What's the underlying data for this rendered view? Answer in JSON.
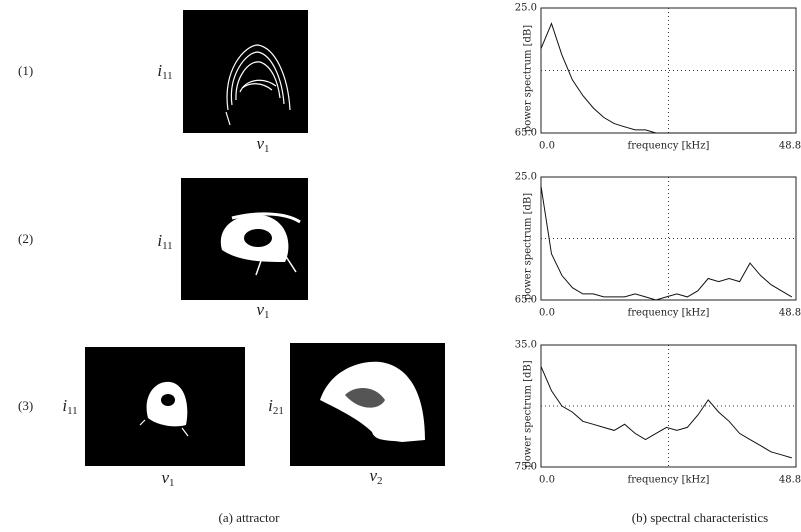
{
  "figure": {
    "rows": [
      {
        "label": "(1)",
        "plots": [
          {
            "y": {
              "symbol": "i",
              "subscript": "11"
            },
            "x": {
              "symbol": "v",
              "subscript": "1"
            }
          }
        ]
      },
      {
        "label": "(2)",
        "plots": [
          {
            "y": {
              "symbol": "i",
              "subscript": "11"
            },
            "x": {
              "symbol": "v",
              "subscript": "1"
            }
          }
        ]
      },
      {
        "label": "(3)",
        "plots": [
          {
            "y": {
              "symbol": "i",
              "subscript": "11"
            },
            "x": {
              "symbol": "v",
              "subscript": "1"
            }
          },
          {
            "y": {
              "symbol": "i",
              "subscript": "21"
            },
            "x": {
              "symbol": "v",
              "subscript": "2"
            }
          }
        ]
      }
    ],
    "spectra": [
      {
        "ylabel": "power spectrum [dB]",
        "xlabel": "frequency [kHz]",
        "ylim": [
          25,
          65
        ],
        "yticks": [
          {
            "value": 25,
            "label": "25.0"
          },
          {
            "value": 65,
            "label": "65.0"
          }
        ],
        "xlim": [
          0,
          48.8
        ],
        "xticks": [
          {
            "value": 0,
            "label": "0.0"
          },
          48.8
        ],
        "x": [
          0,
          2,
          4,
          6,
          8,
          10,
          12,
          14,
          16,
          18,
          20,
          22,
          24,
          26,
          28,
          30,
          32,
          34,
          36,
          38,
          40,
          42,
          44,
          46,
          48
        ],
        "values": [
          38,
          30,
          40,
          48,
          53,
          57,
          60,
          62,
          63,
          64,
          64,
          65,
          65,
          65,
          65,
          65,
          65,
          65,
          65,
          65,
          65,
          65,
          65,
          65,
          65
        ]
      },
      {
        "ylabel": "power spectrum [dB]",
        "xlabel": "frequency [kHz]",
        "ylim": [
          25,
          65
        ],
        "yticks": [
          {
            "value": 25,
            "label": "25.0"
          },
          {
            "value": 65,
            "label": "65.0"
          }
        ],
        "xlim": [
          0,
          48.8
        ],
        "xticks": [
          {
            "value": 0,
            "label": "0.0"
          },
          48.8
        ],
        "x": [
          0,
          2,
          4,
          6,
          8,
          10,
          12,
          14,
          16,
          18,
          20,
          22,
          24,
          26,
          28,
          30,
          32,
          34,
          36,
          38,
          40,
          42,
          44,
          46,
          48
        ],
        "values": [
          28,
          50,
          57,
          61,
          63,
          63,
          64,
          64,
          64,
          63,
          64,
          65,
          64,
          63,
          64,
          62,
          58,
          59,
          58,
          59,
          53,
          57,
          60,
          62,
          64
        ]
      },
      {
        "ylabel": "power spectrum [dB]",
        "xlabel": "frequency [kHz]",
        "ylim": [
          35,
          75
        ],
        "yticks": [
          {
            "value": 35,
            "label": "35.0"
          },
          {
            "value": 75,
            "label": "75.0"
          }
        ],
        "xlim": [
          0,
          48.8
        ],
        "xticks": [
          {
            "value": 0,
            "label": "0.0"
          },
          48.8
        ],
        "x": [
          0,
          2,
          4,
          6,
          8,
          10,
          12,
          14,
          16,
          18,
          20,
          22,
          24,
          26,
          28,
          30,
          32,
          34,
          36,
          38,
          40,
          42,
          44,
          46,
          48
        ],
        "values": [
          42,
          50,
          55,
          57,
          60,
          61,
          62,
          63,
          61,
          64,
          66,
          64,
          62,
          63,
          62,
          58,
          53,
          57,
          60,
          64,
          66,
          68,
          70,
          71,
          72
        ]
      }
    ],
    "captions": [
      "(a) attractor",
      "(b) spectral characteristics"
    ]
  }
}
